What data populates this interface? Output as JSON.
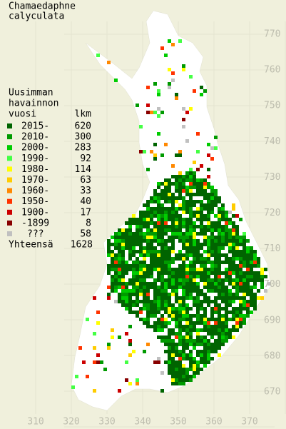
{
  "title": [
    "Chamaedaphne",
    "calyculata"
  ],
  "legend": {
    "heading": [
      "Uusimman",
      "havainnon"
    ],
    "col_year": "vuosi",
    "col_count": "lkm",
    "rows": [
      {
        "label": "2015-",
        "count": 620,
        "color": "#006400"
      },
      {
        "label": "2010-",
        "count": 300,
        "color": "#009a00"
      },
      {
        "label": "2000-",
        "count": 283,
        "color": "#00cc00"
      },
      {
        "label": "1990-",
        "count": 92,
        "color": "#44ff44"
      },
      {
        "label": "1980-",
        "count": 114,
        "color": "#ffff00"
      },
      {
        "label": "1970-",
        "count": 63,
        "color": "#ffcc00"
      },
      {
        "label": "1960-",
        "count": 33,
        "color": "#ff8800"
      },
      {
        "label": "1950-",
        "count": 40,
        "color": "#ff3300"
      },
      {
        "label": "1900-",
        "count": 17,
        "color": "#cc0000"
      },
      {
        "label": "-1899",
        "count": 8,
        "color": "#880000"
      },
      {
        "label": "???",
        "count": 58,
        "color": "#c0c0c0"
      }
    ],
    "total_label": "Yhteensä",
    "total": 1628
  },
  "axes": {
    "y_labels": [
      "770",
      "760",
      "750",
      "740",
      "730",
      "720",
      "710",
      "700",
      "690",
      "680",
      "670"
    ],
    "x_labels": [
      "310",
      "320",
      "330",
      "340",
      "350",
      "360",
      "370"
    ]
  }
}
